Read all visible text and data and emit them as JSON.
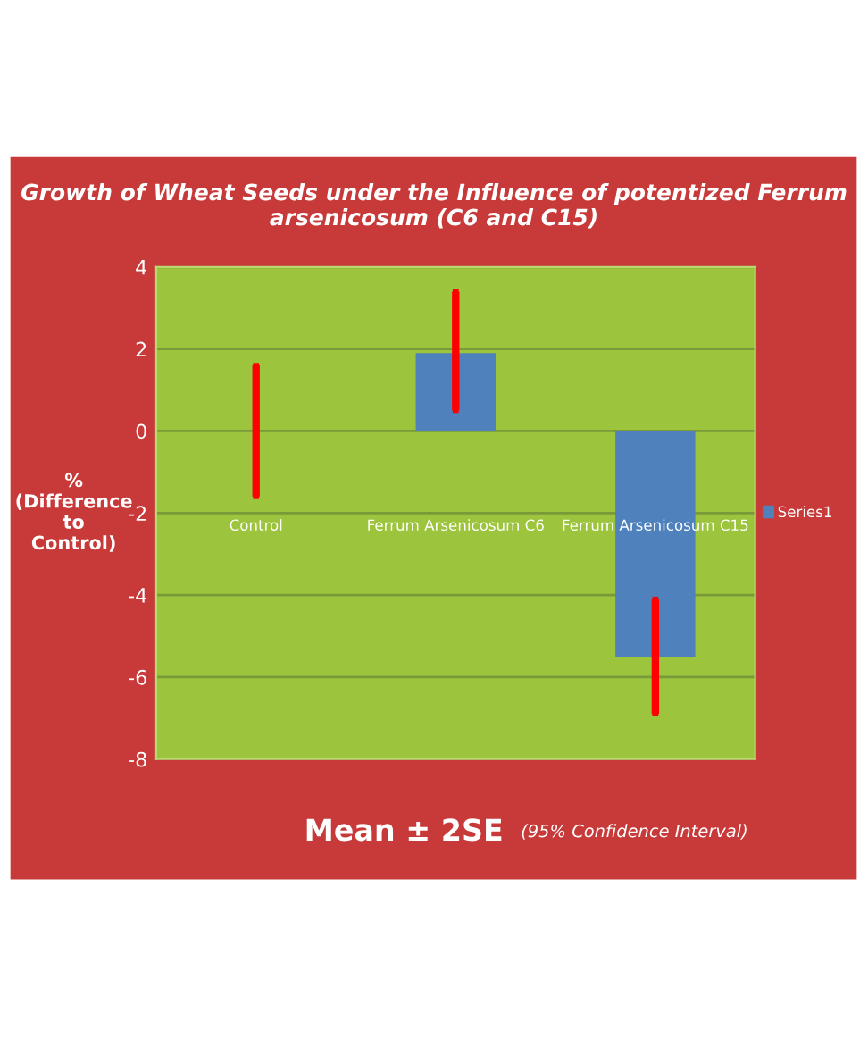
{
  "chart_data": {
    "type": "bar",
    "title": "Growth of Wheat Seeds under the Influence of potentized Ferrum arsenicosum (C6 and C15)",
    "ylabel": "%\n(Difference\nto\nControl)",
    "categories": [
      "Control",
      "Ferrum Arsenicosum C6",
      "Ferrum Arsenicosum C15"
    ],
    "series": [
      {
        "name": "Series1",
        "color": "#4f81bd",
        "values": [
          0,
          1.9,
          -5.5
        ],
        "errors": [
          [
            -1.6,
            1.6
          ],
          [
            0.5,
            3.4
          ],
          [
            -6.9,
            -4.1
          ]
        ]
      }
    ],
    "ylim": [
      -8,
      4
    ],
    "yticks": [
      -8,
      -6,
      -4,
      -2,
      0,
      2,
      4
    ],
    "grid": "y",
    "legend": "right",
    "annotations": [
      "Mean ± 2SE",
      "(95% Confidence Interval)"
    ]
  }
}
